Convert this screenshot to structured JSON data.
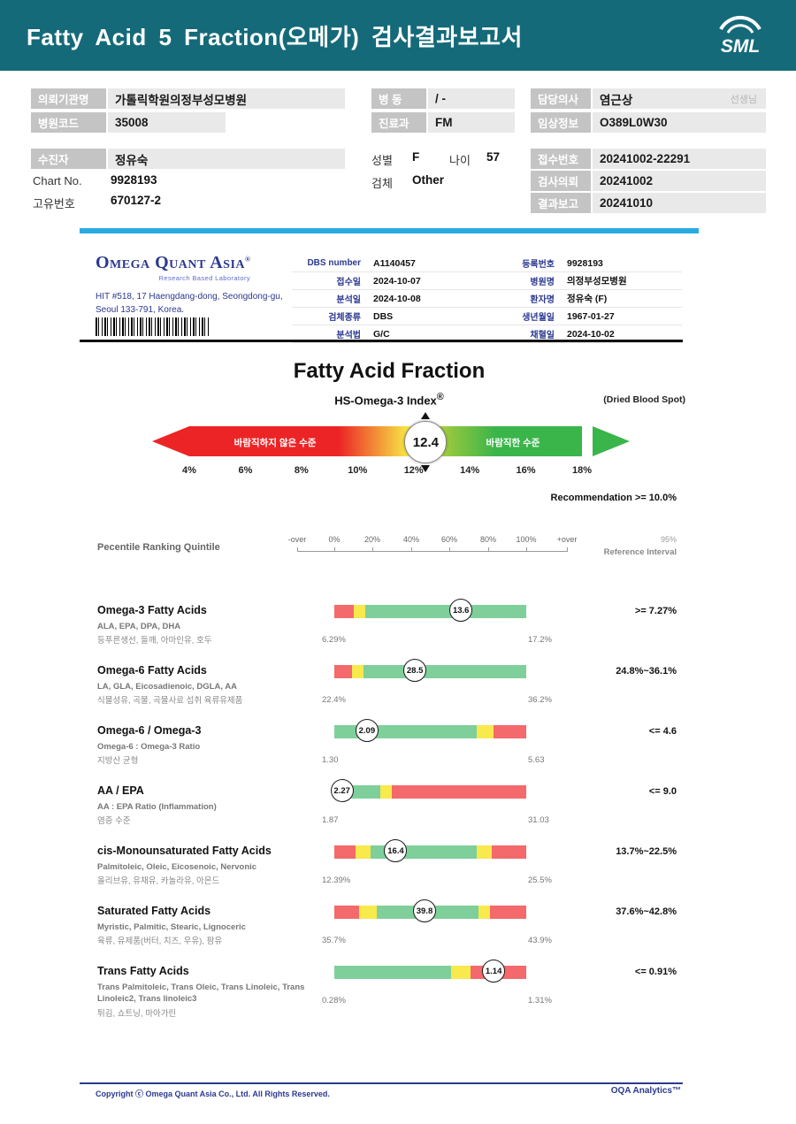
{
  "header": {
    "title": "Fatty Acid 5 Fraction(오메가) 검사결과보고서",
    "logo_text": "SML"
  },
  "patient": {
    "org_label": "의뢰기관명",
    "org_value": "가톨릭학원의정부성모병원",
    "hospital_code_label": "병원코드",
    "hospital_code_value": "35008",
    "ward_label": "병 동",
    "ward_value": "/ -",
    "dept_label": "진료과",
    "dept_value": "FM",
    "doctor_label": "담당의사",
    "doctor_value": "염근상",
    "doctor_suffix": "선생님",
    "clinical_label": "임상정보",
    "clinical_value": "O389L0W30",
    "patient_label": "수진자",
    "patient_value": "정유숙",
    "chart_label": "Chart No.",
    "chart_value": "9928193",
    "uid_label": "고유번호",
    "uid_value": "670127-2",
    "sex_label": "성별",
    "sex_value": "F",
    "age_label": "나이",
    "age_value": "57",
    "specimen_label": "검체",
    "specimen_value": "Other",
    "receipt_label": "접수번호",
    "receipt_value": "20241002-22291",
    "request_label": "검사의뢰",
    "request_value": "20241002",
    "report_label": "결과보고",
    "report_value": "20241010"
  },
  "lab": {
    "name": "Omega Quant Asia",
    "reg_mark": "®",
    "tagline": "Research Based Laboratory",
    "address_line1": "HIT #518, 17 Haengdang-dong, Seongdong-gu,",
    "address_line2": "Seoul 133-791, Korea.",
    "left_table": [
      {
        "label": "DBS number",
        "value": "A1140457"
      },
      {
        "label": "접수일",
        "value": "2024-10-07"
      },
      {
        "label": "분석일",
        "value": "2024-10-08"
      },
      {
        "label": "검체종류",
        "value": "DBS"
      },
      {
        "label": "분석법",
        "value": "G/C"
      }
    ],
    "right_table": [
      {
        "label": "등록번호",
        "value": "9928193"
      },
      {
        "label": "병원명",
        "value": "의정부성모병원"
      },
      {
        "label": "환자명",
        "value": "정유숙 (F)"
      },
      {
        "label": "생년월일",
        "value": "1967-01-27"
      },
      {
        "label": "채혈일",
        "value": "2024-10-02"
      }
    ]
  },
  "section": {
    "title": "Fatty Acid Fraction",
    "subtitle": "HS-Omega-3 Index",
    "subtitle_mark": "®",
    "note": "(Dried Blood Spot)"
  },
  "percentile": {
    "quintile_label": "Pecentile Ranking Quintile",
    "ref_95": "95%",
    "ref_interval": "Reference Interval"
  },
  "footer": {
    "copyright": "Copyright ⓒ Omega Quant Asia Co., Ltd.  All Rights Reserved.",
    "analytics": "OQA Analytics™"
  },
  "colors": {
    "header_bg": "#156a79",
    "divider_blue": "#29abe2",
    "navy": "#2b3990",
    "label_gray_bg": "#c4c4c4",
    "value_gray_bg": "#e9e9e9",
    "bar_red": "#f4696b",
    "bar_yellow": "#f8e94d",
    "bar_green": "#7fcf9b",
    "gauge_red": "#ec2426",
    "gauge_yellow": "#f7ec45",
    "gauge_green": "#3ab54a"
  },
  "chart_data": [
    {
      "type": "gauge",
      "title": "HS-Omega-3 Index",
      "value": 12.4,
      "range": [
        4,
        18
      ],
      "scale_ticks": [
        "4%",
        "6%",
        "8%",
        "10%",
        "12%",
        "14%",
        "16%",
        "18%"
      ],
      "low_label": "바람직하지 않은 수준",
      "high_label": "바람직한 수준",
      "recommendation_text": "Recommendation >= 10.0%"
    },
    {
      "type": "bar",
      "title": "Pecentile Ranking Quintile",
      "axis_ticks": [
        "-over",
        "0%",
        "20%",
        "40%",
        "60%",
        "80%",
        "100%",
        "+over"
      ],
      "rows": [
        {
          "title": "Omega-3 Fatty Acids",
          "subtitle": "ALA, EPA, DPA, DHA",
          "desc": "등푸른생선, 들깨, 아마인유, 호두",
          "value": 13.6,
          "value_pos": 0.66,
          "min": "6.29%",
          "max": "17.2%",
          "reference": ">= 7.27%",
          "segments": [
            {
              "color": "red",
              "width": 0.1
            },
            {
              "color": "yellow",
              "width": 0.06
            },
            {
              "color": "green",
              "width": 0.84
            }
          ]
        },
        {
          "title": "Omega-6 Fatty Acids",
          "subtitle": "LA, GLA, Eicosadienoic, DGLA, AA",
          "desc": "식물성유, 곡물, 곡물사료 섭취 육류유제품",
          "value": 28.5,
          "value_pos": 0.42,
          "min": "22.4%",
          "max": "36.2%",
          "reference": "24.8%~36.1%",
          "segments": [
            {
              "color": "red",
              "width": 0.09
            },
            {
              "color": "yellow",
              "width": 0.06
            },
            {
              "color": "green",
              "width": 0.85
            }
          ]
        },
        {
          "title": "Omega-6 / Omega-3",
          "subtitle": "Omega-6 : Omega-3 Ratio",
          "desc": "지방산 균형",
          "value": 2.09,
          "value_pos": 0.17,
          "min": "1.30",
          "max": "5.63",
          "reference": "<= 4.6",
          "segments": [
            {
              "color": "green",
              "width": 0.74
            },
            {
              "color": "yellow",
              "width": 0.09
            },
            {
              "color": "red",
              "width": 0.17
            }
          ]
        },
        {
          "title": "AA / EPA",
          "subtitle": "AA : EPA Ratio (Inflammation)",
          "desc": "염증 수준",
          "value": 2.27,
          "value_pos": 0.04,
          "min": "1.87",
          "max": "31.03",
          "reference": "<= 9.0",
          "segments": [
            {
              "color": "green",
              "width": 0.24
            },
            {
              "color": "yellow",
              "width": 0.06
            },
            {
              "color": "red",
              "width": 0.7
            }
          ]
        },
        {
          "title": "cis-Monounsaturated Fatty Acids",
          "subtitle": "Palmitoleic, Oleic, Eicosenoic, Nervonic",
          "desc": "올리브유, 유채유, 카놀라유, 아몬드",
          "value": 16.4,
          "value_pos": 0.32,
          "min": "12.39%",
          "max": "25.5%",
          "reference": "13.7%~22.5%",
          "segments": [
            {
              "color": "red",
              "width": 0.11
            },
            {
              "color": "yellow",
              "width": 0.08
            },
            {
              "color": "green",
              "width": 0.55
            },
            {
              "color": "yellow",
              "width": 0.08
            },
            {
              "color": "red",
              "width": 0.18
            }
          ]
        },
        {
          "title": "Saturated Fatty Acids",
          "subtitle": "Myristic, Palmitic, Stearic, Lignoceric",
          "desc": "육류, 유제품(버터, 치즈, 우유), 팜유",
          "value": 39.8,
          "value_pos": 0.47,
          "min": "35.7%",
          "max": "43.9%",
          "reference": "37.6%~42.8%",
          "segments": [
            {
              "color": "red",
              "width": 0.13
            },
            {
              "color": "yellow",
              "width": 0.09
            },
            {
              "color": "green",
              "width": 0.53
            },
            {
              "color": "yellow",
              "width": 0.06
            },
            {
              "color": "red",
              "width": 0.19
            }
          ]
        },
        {
          "title": "Trans Fatty Acids",
          "subtitle": "Trans Palmitoleic, Trans Oleic, Trans Linoleic, Trans Linoleic2, Trans linoleic3",
          "desc": "튀김, 쇼트닝, 마아가린",
          "value": 1.14,
          "value_pos": 0.83,
          "min": "0.28%",
          "max": "1.31%",
          "reference": "<= 0.91%",
          "segments": [
            {
              "color": "green",
              "width": 0.61
            },
            {
              "color": "yellow",
              "width": 0.1
            },
            {
              "color": "red",
              "width": 0.29
            }
          ]
        }
      ]
    }
  ]
}
